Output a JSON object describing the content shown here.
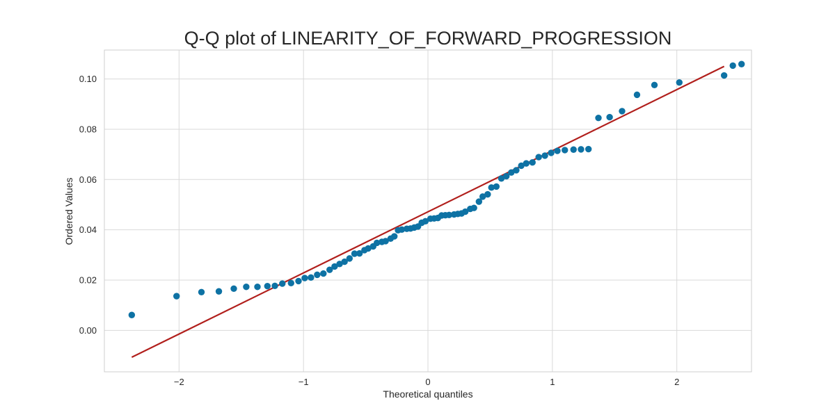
{
  "chart_data": {
    "type": "scatter",
    "title": "Q-Q plot of LINEARITY_OF_FORWARD_PROGRESSION",
    "xlabel": "Theoretical quantiles",
    "ylabel": "Ordered Values",
    "xlim": [
      -2.6,
      2.6
    ],
    "ylim": [
      -0.0165,
      0.1115
    ],
    "x_ticks": [
      -2,
      -1,
      0,
      1,
      2
    ],
    "x_tick_labels": [
      "−2",
      "−1",
      "0",
      "1",
      "2"
    ],
    "y_ticks": [
      0.0,
      0.02,
      0.04,
      0.06,
      0.08,
      0.1
    ],
    "y_tick_labels": [
      "0.00",
      "0.02",
      "0.04",
      "0.06",
      "0.08",
      "0.10"
    ],
    "grid": true,
    "series": [
      {
        "kind": "points",
        "color": "#0e72a4",
        "points": [
          [
            -2.38,
            0.0061
          ],
          [
            -2.02,
            0.0136
          ],
          [
            -1.82,
            0.0152
          ],
          [
            -1.68,
            0.0155
          ],
          [
            -1.56,
            0.0166
          ],
          [
            -1.46,
            0.0173
          ],
          [
            -1.37,
            0.0173
          ],
          [
            -1.29,
            0.0176
          ],
          [
            -1.23,
            0.0177
          ],
          [
            -1.17,
            0.0186
          ],
          [
            -1.1,
            0.0188
          ],
          [
            -1.04,
            0.0196
          ],
          [
            -0.99,
            0.0208
          ],
          [
            -0.94,
            0.021
          ],
          [
            -0.89,
            0.0221
          ],
          [
            -0.84,
            0.0226
          ],
          [
            -0.79,
            0.0241
          ],
          [
            -0.75,
            0.0254
          ],
          [
            -0.71,
            0.0264
          ],
          [
            -0.67,
            0.0273
          ],
          [
            -0.63,
            0.0286
          ],
          [
            -0.59,
            0.0305
          ],
          [
            -0.55,
            0.0306
          ],
          [
            -0.51,
            0.0319
          ],
          [
            -0.48,
            0.0326
          ],
          [
            -0.44,
            0.0334
          ],
          [
            -0.41,
            0.0348
          ],
          [
            -0.37,
            0.0352
          ],
          [
            -0.34,
            0.0355
          ],
          [
            -0.3,
            0.0365
          ],
          [
            -0.27,
            0.0374
          ],
          [
            -0.24,
            0.0398
          ],
          [
            -0.21,
            0.0401
          ],
          [
            -0.17,
            0.0404
          ],
          [
            -0.14,
            0.0405
          ],
          [
            -0.11,
            0.0409
          ],
          [
            -0.08,
            0.0413
          ],
          [
            -0.05,
            0.0428
          ],
          [
            -0.02,
            0.0434
          ],
          [
            0.02,
            0.0444
          ],
          [
            0.05,
            0.0445
          ],
          [
            0.08,
            0.0447
          ],
          [
            0.11,
            0.0457
          ],
          [
            0.14,
            0.0458
          ],
          [
            0.17,
            0.0459
          ],
          [
            0.21,
            0.0461
          ],
          [
            0.24,
            0.0463
          ],
          [
            0.27,
            0.0465
          ],
          [
            0.3,
            0.0472
          ],
          [
            0.34,
            0.0483
          ],
          [
            0.37,
            0.0487
          ],
          [
            0.41,
            0.0512
          ],
          [
            0.44,
            0.0532
          ],
          [
            0.48,
            0.0541
          ],
          [
            0.51,
            0.0568
          ],
          [
            0.55,
            0.0572
          ],
          [
            0.59,
            0.0604
          ],
          [
            0.63,
            0.0613
          ],
          [
            0.67,
            0.0628
          ],
          [
            0.71,
            0.0637
          ],
          [
            0.75,
            0.0655
          ],
          [
            0.79,
            0.0664
          ],
          [
            0.84,
            0.0668
          ],
          [
            0.89,
            0.0689
          ],
          [
            0.94,
            0.0695
          ],
          [
            0.99,
            0.0706
          ],
          [
            1.04,
            0.0714
          ],
          [
            1.1,
            0.0717
          ],
          [
            1.17,
            0.0719
          ],
          [
            1.23,
            0.072
          ],
          [
            1.29,
            0.0721
          ],
          [
            1.37,
            0.0845
          ],
          [
            1.46,
            0.0848
          ],
          [
            1.56,
            0.0872
          ],
          [
            1.68,
            0.0937
          ],
          [
            1.82,
            0.0976
          ],
          [
            2.02,
            0.0986
          ],
          [
            2.38,
            0.1014
          ],
          [
            2.45,
            0.1053
          ],
          [
            2.52,
            0.1059
          ]
        ]
      },
      {
        "kind": "fit-line",
        "color": "#b11f1c",
        "points": [
          [
            -2.38,
            -0.0107
          ],
          [
            2.38,
            0.105
          ]
        ]
      }
    ]
  }
}
